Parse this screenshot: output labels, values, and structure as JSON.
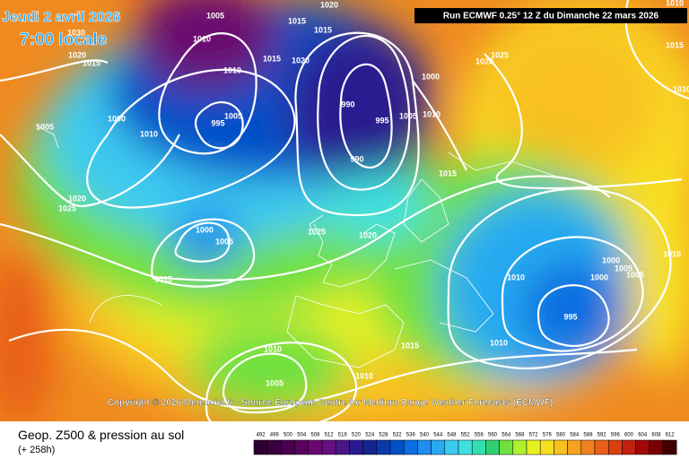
{
  "header": {
    "date": "Jeudi 2 avril 2026",
    "time": "7:00 locale",
    "run": "Run ECMWF 0.25° 12 Z du Dimanche 22 mars 2026"
  },
  "copyright": "Copyright © 2026 Meteociel.fr - Source European Centre for Medium-Range Weather Forecasts (ECMWF)",
  "footer": {
    "title": "Geop. Z500 & pression au sol",
    "lead": "(+ 258h)"
  },
  "isobar_labels": [
    "1020",
    "1015",
    "1015",
    "1030",
    "1010",
    "1005",
    "1020",
    "1015",
    "1015",
    "1020",
    "1010",
    "1025",
    "1020",
    "1015",
    "1000",
    "990",
    "1005",
    "995",
    "1000",
    "1010",
    "1005",
    "995",
    "1005",
    "1010",
    "990",
    "1015",
    "1020",
    "1025",
    "1000",
    "1005",
    "1025",
    "1020",
    "1015",
    "1010",
    "1000",
    "1000",
    "1005",
    "1005",
    "1010",
    "995",
    "1015",
    "1010",
    "1010",
    "1010",
    "1005",
    "1010",
    "1010"
  ],
  "scale": {
    "labels": [
      "492",
      "496",
      "500",
      "504",
      "508",
      "512",
      "516",
      "520",
      "524",
      "528",
      "532",
      "536",
      "540",
      "544",
      "548",
      "552",
      "556",
      "560",
      "564",
      "568",
      "572",
      "576",
      "580",
      "584",
      "588",
      "592",
      "596",
      "600",
      "604",
      "608",
      "612"
    ],
    "colors": [
      "#2c0030",
      "#3b0040",
      "#4a0050",
      "#5a0060",
      "#6a0a70",
      "#640f7f",
      "#4b1588",
      "#2a1a90",
      "#122590",
      "#0a3aa8",
      "#0050c8",
      "#0a6ee0",
      "#1f8ef0",
      "#28aaf0",
      "#3ccaf0",
      "#40e0e0",
      "#30e0b0",
      "#30d070",
      "#70e040",
      "#b0f030",
      "#e8f020",
      "#f8e020",
      "#f8c020",
      "#f8a020",
      "#f08020",
      "#e86018",
      "#d84010",
      "#c02010",
      "#a00808",
      "#780000",
      "#400000"
    ]
  }
}
